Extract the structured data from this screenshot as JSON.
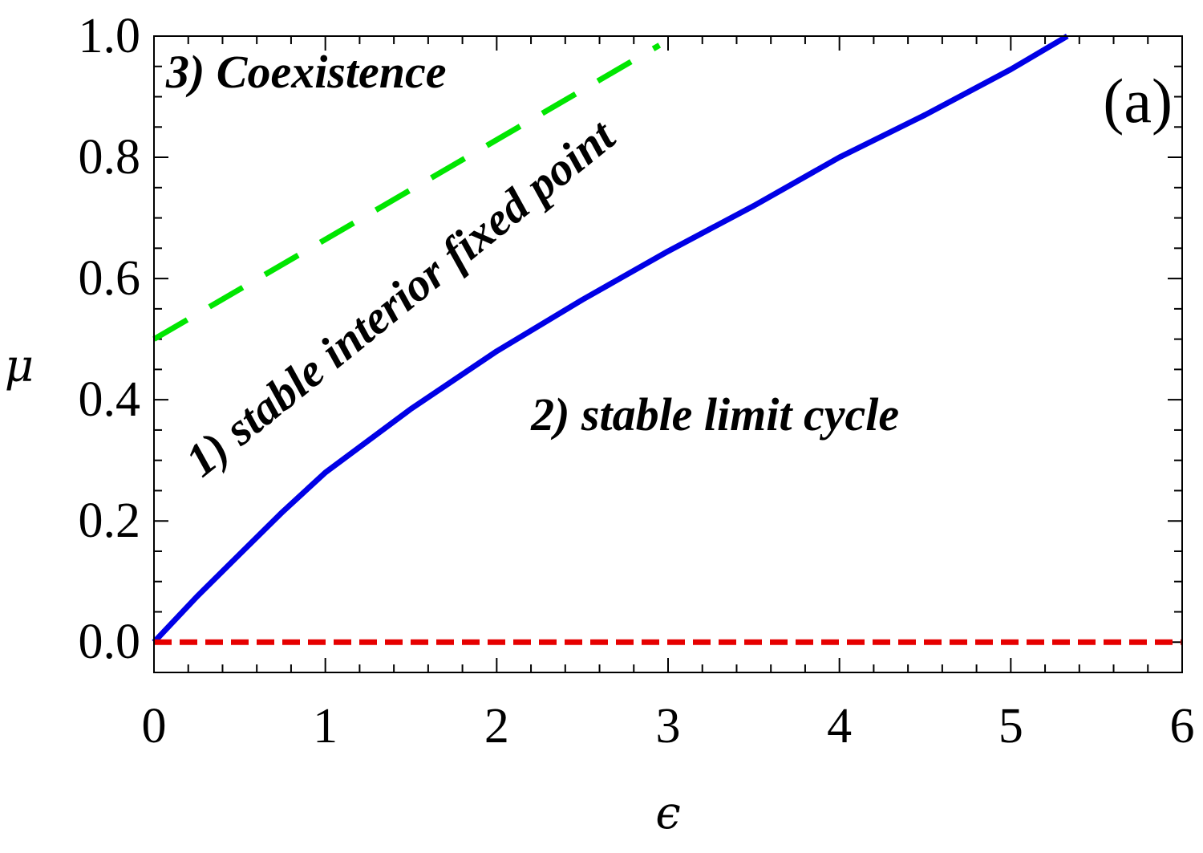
{
  "chart_data": {
    "type": "line",
    "title": "",
    "xlabel": "ϵ",
    "ylabel": "μ",
    "xlim": [
      0,
      6
    ],
    "ylim": [
      -0.05,
      1.0
    ],
    "xticks": [
      0,
      1,
      2,
      3,
      4,
      5,
      6
    ],
    "xtick_labels": [
      "0",
      "1",
      "2",
      "3",
      "4",
      "5",
      "6"
    ],
    "yticks": [
      0.0,
      0.2,
      0.4,
      0.6,
      0.8,
      1.0
    ],
    "ytick_labels": [
      "0.0",
      "0.2",
      "0.4",
      "0.6",
      "0.8",
      "1.0"
    ],
    "grid": false,
    "legend": "none",
    "series": [
      {
        "style": "solid",
        "color": "#0000e6",
        "x": [
          0,
          0.25,
          0.5,
          0.75,
          1.0,
          1.5,
          2.0,
          2.5,
          3.0,
          3.5,
          4.0,
          4.5,
          5.0,
          5.33
        ],
        "y": [
          0,
          0.075,
          0.145,
          0.215,
          0.28,
          0.385,
          0.48,
          0.565,
          0.645,
          0.72,
          0.8,
          0.87,
          0.945,
          1.0
        ]
      },
      {
        "style": "dashed",
        "color": "#00e600",
        "x": [
          0,
          2.95
        ],
        "y": [
          0.5,
          0.985
        ]
      },
      {
        "style": "dashed",
        "color": "#e60000",
        "x": [
          0,
          6
        ],
        "y": [
          0,
          0
        ]
      }
    ],
    "annotations": [
      {
        "text": "3) Coexistence",
        "x": 0.07,
        "y": 0.915,
        "rotate": 0
      },
      {
        "text": "1) stable interior fixed point",
        "x": 0.28,
        "y": 0.27,
        "rotate": -39
      },
      {
        "text": "2) stable limit cycle",
        "x": 2.2,
        "y": 0.35,
        "rotate": 0
      }
    ],
    "panel_label": "(a)"
  }
}
